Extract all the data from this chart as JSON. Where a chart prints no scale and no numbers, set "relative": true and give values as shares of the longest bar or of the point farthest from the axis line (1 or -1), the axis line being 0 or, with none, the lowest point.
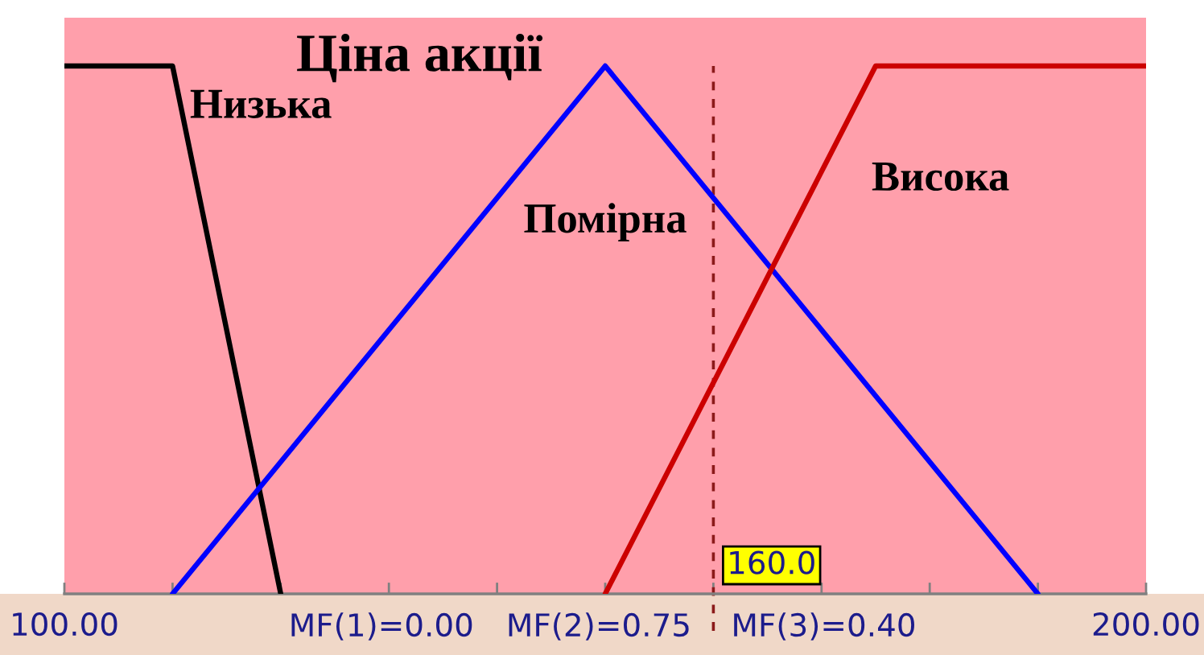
{
  "chart_data": {
    "type": "line",
    "title": "Ціна акції",
    "relative": true,
    "xlim": [
      100,
      200
    ],
    "xticks": [
      {
        "value": 100,
        "label": "100.00"
      },
      {
        "value": 110,
        "label": null
      },
      {
        "value": 120,
        "label": null
      },
      {
        "value": 130,
        "label": null
      },
      {
        "value": 140,
        "label": null
      },
      {
        "value": 150,
        "label": null
      },
      {
        "value": 160,
        "label": null
      },
      {
        "value": 170,
        "label": null
      },
      {
        "value": 180,
        "label": null
      },
      {
        "value": 190,
        "label": null
      },
      {
        "value": 200,
        "label": "200.00"
      }
    ],
    "tick_labels": "x",
    "series": [
      {
        "name": "Низька",
        "color": "#000000",
        "x": [
          100,
          110,
          120
        ],
        "values": [
          1,
          1,
          0
        ]
      },
      {
        "name": "Помірна",
        "color": "#0000ff",
        "x": [
          110,
          150,
          190
        ],
        "values": [
          0,
          1,
          0
        ]
      },
      {
        "name": "Висока",
        "color": "#cc0000",
        "x": [
          150,
          175,
          200
        ],
        "values": [
          0,
          1,
          1
        ]
      }
    ],
    "ref_lines": [
      {
        "axis": "x",
        "value": 160,
        "label": "160.0",
        "color": "#8b1a1a",
        "line_style": "dashed"
      }
    ],
    "annotations": [
      "MF(1)=0.00",
      "MF(2)=0.75",
      "MF(3)=0.40"
    ]
  }
}
